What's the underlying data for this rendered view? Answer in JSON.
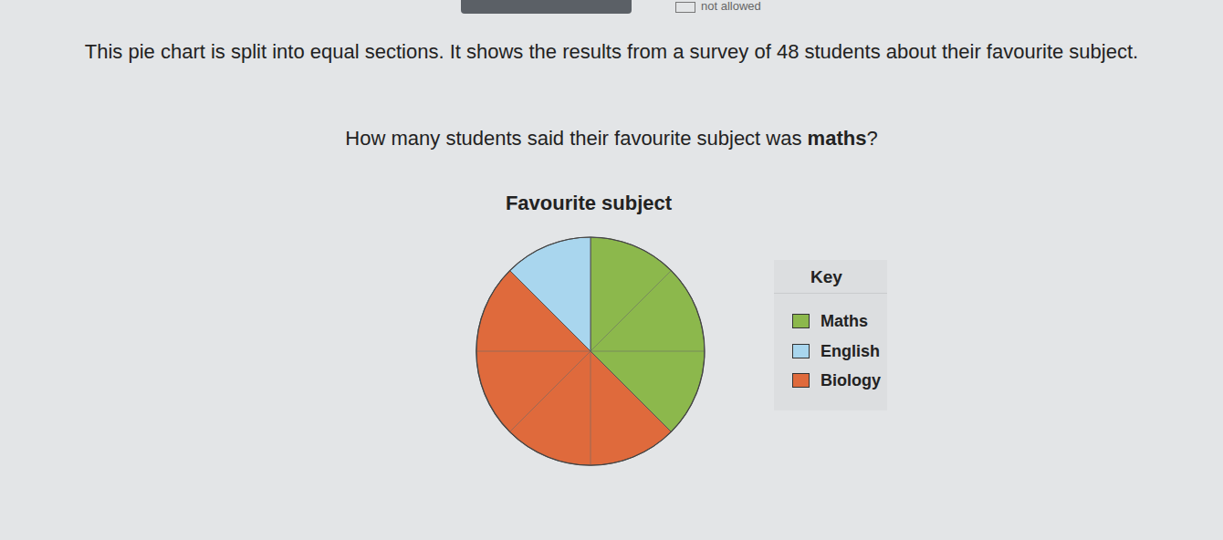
{
  "header": {
    "status": "not allowed"
  },
  "prompt": {
    "intro": "This pie chart is split into equal sections. It shows the results from a survey of 48 students about their favourite subject.",
    "question": [
      "How many students said their favourite subject was ",
      "maths",
      "?"
    ]
  },
  "chart_data": {
    "type": "pie",
    "title": "Favourite subject",
    "legend_title": "Key",
    "categories": [
      "Maths",
      "English",
      "Biology"
    ],
    "values": [
      3,
      1,
      4
    ],
    "colors": [
      "#8cb84c",
      "#a9d6ee",
      "#df6a3c"
    ],
    "legend": "right"
  }
}
